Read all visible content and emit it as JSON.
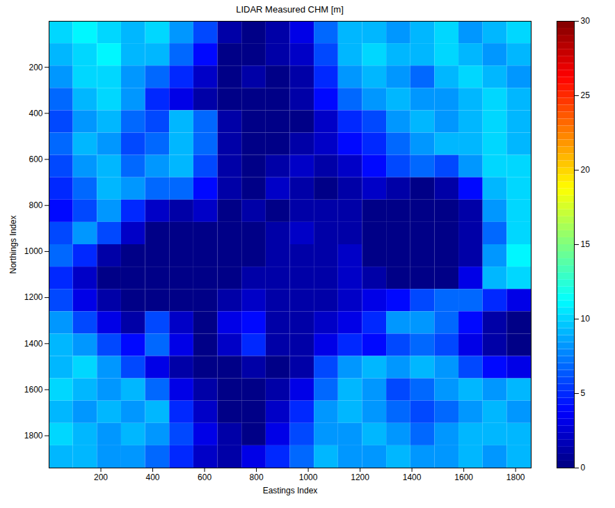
{
  "chart_data": {
    "type": "heatmap",
    "title": "LIDAR Measured CHM [m]",
    "x_label": "Eastings Index",
    "y_label": "Northings Index",
    "xlim": [
      0,
      1860
    ],
    "ylim": [
      0,
      1940
    ],
    "xticks": [
      200,
      400,
      600,
      800,
      1000,
      1200,
      1400,
      1600,
      1800
    ],
    "yticks": [
      200,
      400,
      600,
      800,
      1000,
      1200,
      1400,
      1600,
      1800
    ],
    "x_edges": [
      0,
      93,
      186,
      279,
      372,
      465,
      558,
      651,
      744,
      837,
      930,
      1023,
      1116,
      1209,
      1302,
      1395,
      1488,
      1581,
      1674,
      1767,
      1860
    ],
    "y_edges": [
      0,
      97,
      194,
      291,
      388,
      485,
      582,
      679,
      776,
      873,
      970,
      1067,
      1164,
      1261,
      1358,
      1455,
      1552,
      1649,
      1746,
      1843,
      1940
    ],
    "values": [
      [
        10,
        11,
        10,
        9,
        10,
        8,
        6,
        1,
        0,
        1,
        3,
        7,
        9,
        9,
        8,
        9,
        10,
        8,
        9,
        10
      ],
      [
        9,
        10,
        11,
        9,
        9,
        7,
        4,
        0,
        0,
        1,
        2,
        6,
        9,
        10,
        9,
        9,
        10,
        9,
        8,
        9
      ],
      [
        8,
        10,
        10,
        8,
        7,
        5,
        2,
        0,
        1,
        0,
        1,
        5,
        8,
        9,
        8,
        7,
        9,
        10,
        9,
        8
      ],
      [
        7,
        9,
        10,
        8,
        5,
        3,
        1,
        0,
        0,
        0,
        1,
        4,
        7,
        8,
        9,
        8,
        8,
        9,
        10,
        9
      ],
      [
        6,
        8,
        9,
        7,
        6,
        9,
        7,
        1,
        0,
        0,
        0,
        2,
        5,
        6,
        8,
        9,
        8,
        9,
        10,
        9
      ],
      [
        7,
        9,
        8,
        6,
        7,
        9,
        7,
        1,
        0,
        0,
        1,
        2,
        4,
        5,
        7,
        8,
        9,
        9,
        10,
        9
      ],
      [
        6,
        8,
        9,
        7,
        8,
        9,
        6,
        1,
        0,
        1,
        2,
        1,
        2,
        4,
        6,
        7,
        6,
        8,
        10,
        10
      ],
      [
        5,
        7,
        9,
        8,
        7,
        7,
        4,
        1,
        0,
        2,
        1,
        0,
        1,
        2,
        1,
        0,
        1,
        4,
        9,
        10
      ],
      [
        4,
        6,
        8,
        5,
        2,
        1,
        2,
        0,
        1,
        0,
        1,
        1,
        1,
        0,
        0,
        0,
        0,
        1,
        8,
        10
      ],
      [
        6,
        8,
        6,
        2,
        0,
        0,
        0,
        0,
        0,
        1,
        2,
        1,
        1,
        0,
        0,
        0,
        0,
        1,
        7,
        10
      ],
      [
        7,
        5,
        1,
        0,
        0,
        0,
        0,
        0,
        0,
        1,
        1,
        1,
        2,
        0,
        0,
        0,
        0,
        1,
        8,
        11
      ],
      [
        5,
        2,
        0,
        0,
        0,
        0,
        0,
        0,
        1,
        1,
        1,
        1,
        2,
        1,
        0,
        0,
        0,
        3,
        9,
        10
      ],
      [
        6,
        3,
        1,
        0,
        0,
        0,
        0,
        1,
        2,
        1,
        1,
        1,
        2,
        3,
        4,
        6,
        7,
        7,
        5,
        3
      ],
      [
        8,
        6,
        3,
        1,
        6,
        2,
        0,
        3,
        4,
        1,
        1,
        2,
        3,
        5,
        8,
        8,
        7,
        4,
        1,
        0
      ],
      [
        9,
        8,
        6,
        4,
        7,
        3,
        0,
        2,
        5,
        1,
        1,
        3,
        5,
        4,
        6,
        7,
        6,
        3,
        1,
        0
      ],
      [
        9,
        10,
        8,
        6,
        3,
        1,
        0,
        0,
        1,
        0,
        1,
        6,
        8,
        9,
        8,
        9,
        8,
        6,
        4,
        3
      ],
      [
        10,
        9,
        8,
        9,
        7,
        3,
        1,
        0,
        0,
        1,
        3,
        7,
        9,
        8,
        6,
        7,
        8,
        9,
        8,
        9
      ],
      [
        9,
        8,
        9,
        8,
        9,
        5,
        2,
        0,
        0,
        2,
        5,
        8,
        9,
        8,
        7,
        6,
        7,
        8,
        9,
        8
      ],
      [
        10,
        9,
        8,
        9,
        8,
        6,
        3,
        1,
        0,
        3,
        6,
        8,
        8,
        9,
        8,
        7,
        8,
        9,
        9,
        9
      ],
      [
        9,
        9,
        8,
        8,
        7,
        5,
        2,
        1,
        3,
        5,
        7,
        9,
        8,
        8,
        9,
        8,
        8,
        9,
        8,
        9
      ]
    ],
    "colorbar": {
      "range": [
        0,
        30
      ],
      "ticks": [
        0,
        5,
        10,
        15,
        20,
        25,
        30
      ]
    }
  }
}
